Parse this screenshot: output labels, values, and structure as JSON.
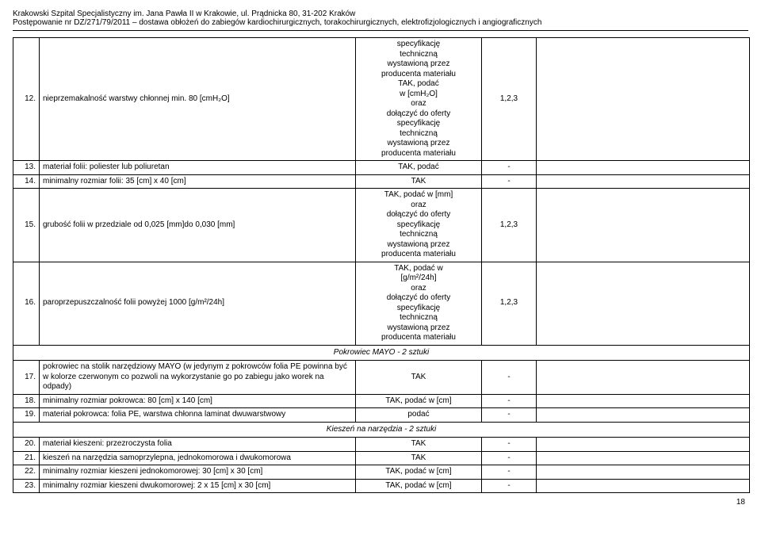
{
  "header": {
    "line1": "Krakowski Szpital Specjalistyczny im. Jana Pawła II w Krakowie, ul. Prądnicka 80, 31-202 Kraków",
    "line2": "Postępowanie nr DZ/271/79/2011 – dostawa obłożeń do zabiegów kardiochirurgicznych, torakochirurgicznych, elektrofizjologicznych i angiograficznych"
  },
  "rows": [
    {
      "num": "12.",
      "desc": "nieprzemakalność warstwy chłonnej min. 80 [cmH₂O]",
      "spec": "specyfikację\ntechniczną\nwystawioną przez\nproducenta materiału\nTAK, podać\nw [cmH₂O]\noraz\ndołączyć do oferty\nspecyfikację\ntechniczną\nwystawioną przez\nproducenta materiału",
      "score": "1,2,3",
      "blank": ""
    },
    {
      "num": "13.",
      "desc": "materiał folii: poliester lub poliuretan",
      "spec": "TAK, podać",
      "score": "-",
      "blank": ""
    },
    {
      "num": "14.",
      "desc": "minimalny rozmiar folii: 35 [cm] x 40 [cm]",
      "spec": "TAK",
      "score": "-",
      "blank": ""
    },
    {
      "num": "15.",
      "desc": "grubość folii w przedziale od  0,025 [mm]do 0,030 [mm]",
      "spec": "TAK, podać w [mm]\noraz\ndołączyć do oferty\nspecyfikację\ntechniczną\nwystawioną przez\nproducenta materiału",
      "score": "1,2,3",
      "blank": ""
    },
    {
      "num": "16.",
      "desc": "paroprzepuszczalność folii powyżej 1000 [g/m²/24h]",
      "spec": "TAK, podać w\n[g/m²/24h]\noraz\ndołączyć do oferty\nspecyfikację\ntechniczną\nwystawioną przez\nproducenta materiału",
      "score": "1,2,3",
      "blank": ""
    },
    {
      "section": "Pokrowiec MAYO - 2 sztuki"
    },
    {
      "num": "17.",
      "desc": "pokrowiec na stolik narzędziowy MAYO (w jedynym z pokrowców folia PE powinna być w kolorze czerwonym co pozwoli na wykorzystanie go po zabiegu jako worek na odpady)",
      "spec": "TAK",
      "score": "-",
      "blank": ""
    },
    {
      "num": "18.",
      "desc": "minimalny rozmiar pokrowca: 80 [cm] x 140 [cm]",
      "spec": "TAK, podać w [cm]",
      "score": "-",
      "blank": ""
    },
    {
      "num": "19.",
      "desc": "materiał pokrowca: folia PE, warstwa chłonna laminat dwuwarstwowy",
      "spec": "podać",
      "score": "-",
      "blank": ""
    },
    {
      "section": "Kieszeń na narzędzia - 2 sztuki"
    },
    {
      "num": "20.",
      "desc": "materiał kieszeni: przezroczysta folia",
      "spec": "TAK",
      "score": "-",
      "blank": ""
    },
    {
      "num": "21.",
      "desc": "kieszeń na narzędzia samoprzylepna, jednokomorowa i dwukomorowa",
      "spec": "TAK",
      "score": "-",
      "blank": ""
    },
    {
      "num": "22.",
      "desc": "minimalny rozmiar kieszeni jednokomorowej: 30 [cm] x 30 [cm]",
      "spec": "TAK, podać w [cm]",
      "score": "-",
      "blank": ""
    },
    {
      "num": "23.",
      "desc": "minimalny rozmiar kieszeni dwukomorowej: 2 x 15 [cm] x 30 [cm]",
      "spec": "TAK, podać w [cm]",
      "score": "-",
      "blank": ""
    }
  ],
  "page_number": "18"
}
